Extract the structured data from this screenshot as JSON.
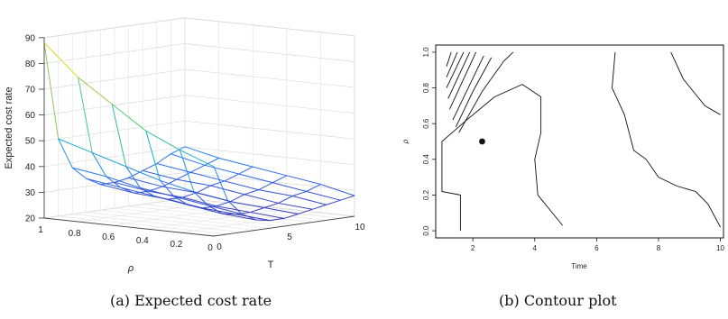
{
  "chart_data": [
    {
      "type": "surface",
      "caption": "(a) Expected cost rate",
      "zlabel": "Expected cost rate",
      "xlabel": "T",
      "ylabel": "ρ",
      "zlim": [
        20,
        90
      ],
      "z_ticks": [
        20,
        30,
        40,
        50,
        60,
        70,
        80,
        90
      ],
      "x_ticks": [
        0,
        5,
        10
      ],
      "y_ticks": [
        "1",
        "0.8",
        "0.6",
        "0.4",
        "0.2",
        "0"
      ],
      "grid": true,
      "colormap": "parula",
      "T": [
        0,
        1,
        2,
        3,
        4,
        5,
        6,
        7,
        8,
        9,
        10
      ],
      "rho": [
        1.0,
        0.8,
        0.6,
        0.4,
        0.2,
        0.0
      ],
      "z": [
        [
          88,
          50,
          38,
          33,
          30,
          30,
          31,
          33,
          35,
          38,
          40
        ],
        [
          76,
          46,
          36,
          31,
          28,
          28,
          29,
          31,
          33,
          35,
          37
        ],
        [
          67,
          42,
          33,
          29,
          27,
          27,
          28,
          30,
          31,
          33,
          35
        ],
        [
          58,
          38,
          31,
          27,
          25,
          25,
          26,
          28,
          29,
          31,
          33
        ],
        [
          52,
          35,
          29,
          25,
          24,
          24,
          25,
          26,
          28,
          29,
          31
        ],
        [
          47,
          33,
          27,
          24,
          23,
          23,
          24,
          25,
          26,
          27,
          28
        ]
      ]
    },
    {
      "type": "contour",
      "caption": "(b) Contour plot",
      "xlabel": "Time",
      "ylabel": "ρ",
      "xlim": [
        0.8,
        10.1
      ],
      "ylim": [
        -0.04,
        1.04
      ],
      "x_ticks": [
        2,
        4,
        6,
        8,
        10
      ],
      "y_ticks": [
        "0.0",
        "0.2",
        "0.4",
        "0.6",
        "0.8",
        "1.0"
      ],
      "optimum_point": [
        2.3,
        0.5
      ],
      "contour_lines": [
        [
          [
            1.15,
            0.92
          ],
          [
            1.3,
            1.0
          ]
        ],
        [
          [
            1.15,
            0.86
          ],
          [
            1.5,
            1.0
          ]
        ],
        [
          [
            1.15,
            0.8
          ],
          [
            1.7,
            1.0
          ]
        ],
        [
          [
            1.2,
            0.74
          ],
          [
            1.9,
            1.0
          ]
        ],
        [
          [
            1.25,
            0.68
          ],
          [
            2.1,
            1.0
          ]
        ],
        [
          [
            1.35,
            0.62
          ],
          [
            2.35,
            0.98
          ]
        ],
        [
          [
            1.45,
            0.58
          ],
          [
            2.0,
            0.78
          ],
          [
            2.6,
            0.97
          ]
        ],
        [
          [
            1.55,
            0.55
          ],
          [
            2.3,
            0.78
          ],
          [
            3.0,
            0.95
          ],
          [
            3.3,
            1.0
          ]
        ],
        [
          [
            1.6,
            0.0
          ],
          [
            1.6,
            0.2
          ],
          [
            1.0,
            0.22
          ],
          [
            1.0,
            0.5
          ],
          [
            1.8,
            0.62
          ],
          [
            2.7,
            0.75
          ],
          [
            3.6,
            0.82
          ],
          [
            4.2,
            0.75
          ],
          [
            4.2,
            0.55
          ],
          [
            4.0,
            0.4
          ],
          [
            4.1,
            0.2
          ],
          [
            4.9,
            0.03
          ]
        ],
        [
          [
            6.6,
            1.0
          ],
          [
            6.5,
            0.8
          ],
          [
            6.9,
            0.65
          ],
          [
            7.2,
            0.45
          ],
          [
            7.6,
            0.4
          ],
          [
            8.0,
            0.3
          ],
          [
            8.6,
            0.25
          ],
          [
            9.2,
            0.22
          ],
          [
            9.6,
            0.15
          ],
          [
            10.0,
            0.02
          ]
        ],
        [
          [
            8.4,
            1.0
          ],
          [
            8.8,
            0.85
          ],
          [
            9.5,
            0.7
          ],
          [
            10.0,
            0.65
          ]
        ]
      ]
    }
  ]
}
